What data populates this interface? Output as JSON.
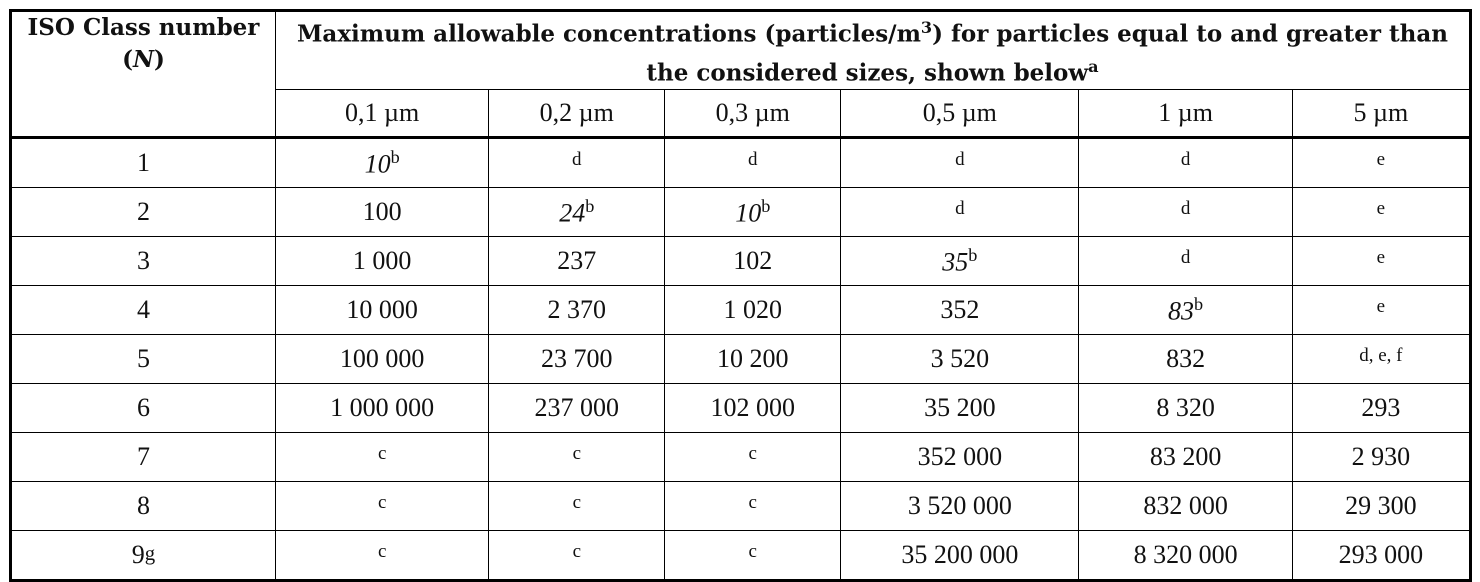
{
  "header": {
    "class_header": {
      "line1": "ISO Class number",
      "open": "(",
      "symbol": "N",
      "close": ")"
    },
    "main_header": {
      "before": "Maximum allowable concentrations (particles/m",
      "exp": "3",
      "after": ") for particles equal to and greater than the considered sizes, shown below",
      "note": "a"
    },
    "sizes": [
      "0,1 µm",
      "0,2 µm",
      "0,3 µm",
      "0,5 µm",
      "1 µm",
      "5 µm"
    ]
  },
  "table": {
    "rows": [
      {
        "class": {
          "text": "1"
        },
        "cells": [
          {
            "text": "10",
            "note": "b"
          },
          {
            "note": "d"
          },
          {
            "note": "d"
          },
          {
            "note": "d"
          },
          {
            "note": "d"
          },
          {
            "note": "e"
          }
        ]
      },
      {
        "class": {
          "text": "2"
        },
        "cells": [
          "100",
          {
            "text": "24",
            "note": "b"
          },
          {
            "text": "10",
            "note": "b"
          },
          {
            "note": "d"
          },
          {
            "note": "d"
          },
          {
            "note": "e"
          }
        ]
      },
      {
        "class": {
          "text": "3"
        },
        "cells": [
          "1 000",
          "237",
          "102",
          {
            "text": "35",
            "note": "b"
          },
          {
            "note": "d"
          },
          {
            "note": "e"
          }
        ]
      },
      {
        "class": {
          "text": "4"
        },
        "cells": [
          "10 000",
          "2 370",
          "1 020",
          "352",
          {
            "text": "83",
            "note": "b"
          },
          {
            "note": "e"
          }
        ]
      },
      {
        "class": {
          "text": "5"
        },
        "cells": [
          "100 000",
          "23 700",
          "10 200",
          "3 520",
          "832",
          {
            "note": "d, e, f"
          }
        ]
      },
      {
        "class": {
          "text": "6"
        },
        "cells": [
          "1 000 000",
          "237 000",
          "102 000",
          "35 200",
          "8 320",
          "293"
        ]
      },
      {
        "class": {
          "text": "7"
        },
        "cells": [
          {
            "note": "c"
          },
          {
            "note": "c"
          },
          {
            "note": "c"
          },
          "352 000",
          "83 200",
          "2 930"
        ]
      },
      {
        "class": {
          "text": "8"
        },
        "cells": [
          {
            "note": "c"
          },
          {
            "note": "c"
          },
          {
            "note": "c"
          },
          "3 520 000",
          "832 000",
          "29 300"
        ]
      },
      {
        "class": {
          "text": "9",
          "note": "g"
        },
        "cells": [
          {
            "note": "c"
          },
          {
            "note": "c"
          },
          {
            "note": "c"
          },
          "35 200 000",
          "8 320 000",
          "293 000"
        ]
      }
    ]
  }
}
